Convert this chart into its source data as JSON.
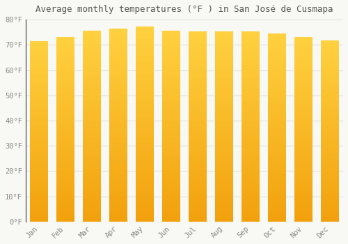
{
  "months": [
    "Jan",
    "Feb",
    "Mar",
    "Apr",
    "May",
    "Jun",
    "Jul",
    "Aug",
    "Sep",
    "Oct",
    "Nov",
    "Dec"
  ],
  "values": [
    71.5,
    73.0,
    75.7,
    76.3,
    77.2,
    75.7,
    75.2,
    75.2,
    75.2,
    74.5,
    73.0,
    71.8
  ],
  "title": "Average monthly temperatures (°F ) in San José de Cusmapa",
  "ylim": [
    0,
    80
  ],
  "yticks": [
    0,
    10,
    20,
    30,
    40,
    50,
    60,
    70,
    80
  ],
  "bar_color_top": "#FFD040",
  "bar_color_bottom": "#F0A000",
  "background_color": "#F8F8F5",
  "grid_color": "#E0E0E0",
  "title_fontsize": 9,
  "tick_fontsize": 7.5,
  "bar_width": 0.7
}
